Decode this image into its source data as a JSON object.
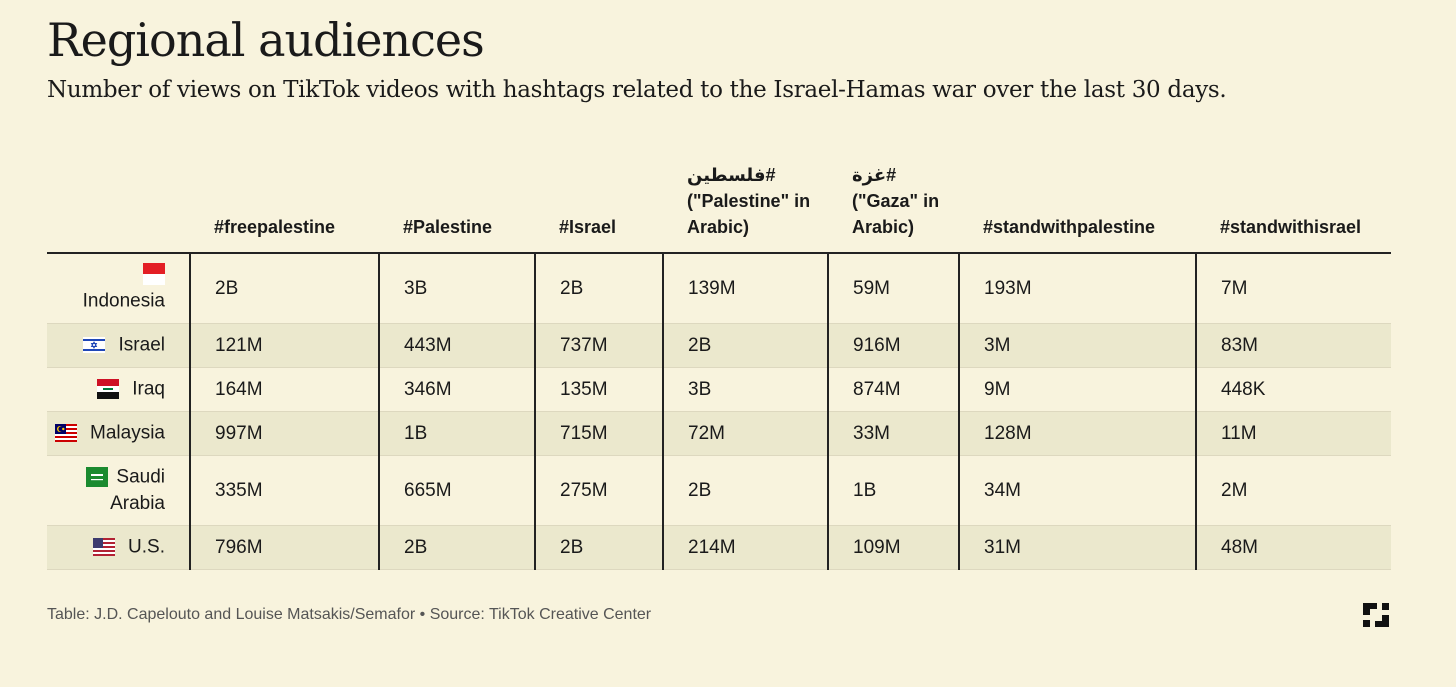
{
  "title": "Regional audiences",
  "subtitle": "Number of views on TikTok videos with hashtags related to the Israel-Hamas war over the last 30 days.",
  "footer": "Table: J.D. Capelouto and Louise Matsakis/Semafor • Source: TikTok Creative Center",
  "chart_data": {
    "type": "table",
    "columns": [
      {
        "line1": "",
        "line2": "",
        "line3": "#freepalestine"
      },
      {
        "line1": "",
        "line2": "",
        "line3": "#Palestine"
      },
      {
        "line1": "",
        "line2": "",
        "line3": "#Israel"
      },
      {
        "line1": "#فلسطين",
        "line2": "(\"Palestine\" in",
        "line3": "Arabic)"
      },
      {
        "line1": "#غزة",
        "line2": "(\"Gaza\" in",
        "line3": "Arabic)"
      },
      {
        "line1": "",
        "line2": "",
        "line3": "#standwithpalestine"
      },
      {
        "line1": "",
        "line2": "",
        "line3": "#standwithisrael"
      }
    ],
    "rows": [
      {
        "country": "Indonesia",
        "flag": "indonesia-flag-icon",
        "values": [
          "2B",
          "3B",
          "2B",
          "139M",
          "59M",
          "193M",
          "7M"
        ]
      },
      {
        "country": "Israel",
        "flag": "israel-flag-icon",
        "values": [
          "121M",
          "443M",
          "737M",
          "2B",
          "916M",
          "3M",
          "83M"
        ]
      },
      {
        "country": "Iraq",
        "flag": "iraq-flag-icon",
        "values": [
          "164M",
          "346M",
          "135M",
          "3B",
          "874M",
          "9M",
          "448K"
        ]
      },
      {
        "country": "Malaysia",
        "flag": "malaysia-flag-icon",
        "values": [
          "997M",
          "1B",
          "715M",
          "72M",
          "33M",
          "128M",
          "11M"
        ]
      },
      {
        "country_line1": "Saudi",
        "country_line2": "Arabia",
        "flag": "saudi-arabia-flag-icon",
        "values": [
          "335M",
          "665M",
          "275M",
          "2B",
          "1B",
          "34M",
          "2M"
        ]
      },
      {
        "country": "U.S.",
        "flag": "us-flag-icon",
        "values": [
          "796M",
          "2B",
          "2B",
          "214M",
          "109M",
          "31M",
          "48M"
        ]
      }
    ]
  }
}
